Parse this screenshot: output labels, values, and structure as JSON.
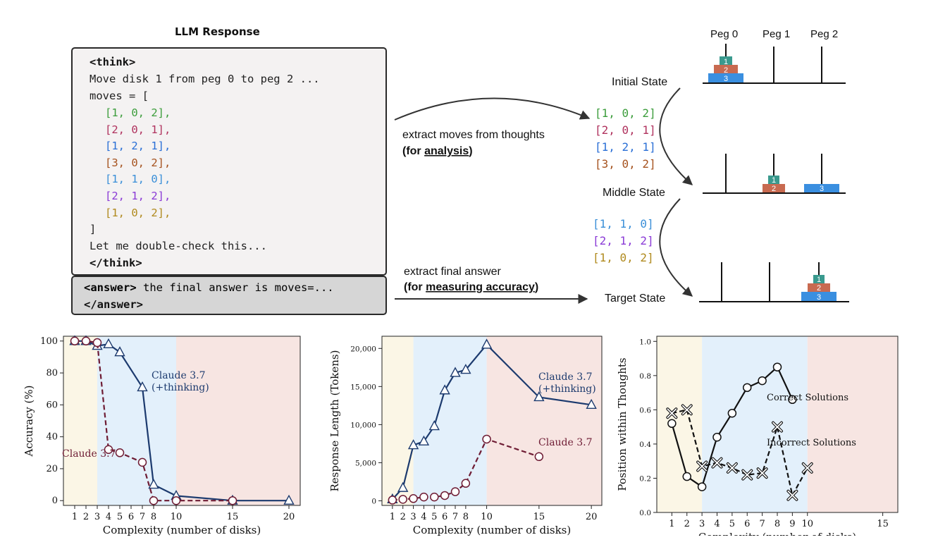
{
  "llm": {
    "title": "LLM Response",
    "think_open": "<think>",
    "line_move": "Move disk 1 from peg 0 to peg 2 ...",
    "moves_open": "moves = [",
    "moves": [
      {
        "text": "[1, 0, 2],",
        "color": "#3c9d3c"
      },
      {
        "text": "[2, 0, 1],",
        "color": "#b0325e"
      },
      {
        "text": "[1, 2, 1],",
        "color": "#2a6fd6"
      },
      {
        "text": "[3, 0, 2],",
        "color": "#a5521e"
      },
      {
        "text": "[1, 1, 0],",
        "color": "#3a8fd8"
      },
      {
        "text": "[2, 1, 2],",
        "color": "#8a3ad6"
      },
      {
        "text": "[1, 0, 2],",
        "color": "#b08a1e"
      }
    ],
    "moves_close": "]",
    "double_check": "Let me double-check this...",
    "think_close": "</think>",
    "answer_open": "<answer>",
    "answer_text": " the final answer is moves=...",
    "answer_close": "</answer>"
  },
  "arrows": {
    "extract_moves": "extract moves  from thoughts",
    "for_analysis_pre": "(for ",
    "for_analysis_u": "analysis",
    "for_analysis_post": ")",
    "extract_final": "extract final answer",
    "for_acc_pre": "(for ",
    "for_acc_u": "measuring accuracy",
    "for_acc_post": ")"
  },
  "hanoi": {
    "pegs": [
      "Peg 0",
      "Peg 1",
      "Peg 2"
    ],
    "states": [
      "Initial State",
      "Middle State",
      "Target State"
    ],
    "disk_labels": [
      "1",
      "2",
      "3"
    ],
    "disk_colors": [
      "#3a9a8e",
      "#c86a50",
      "#3a8fe0"
    ],
    "moves_a": [
      {
        "text": "[1, 0, 2]",
        "color": "#3c9d3c"
      },
      {
        "text": "[2, 0, 1]",
        "color": "#b0325e"
      },
      {
        "text": "[1, 2, 1]",
        "color": "#2a6fd6"
      },
      {
        "text": "[3, 0, 2]",
        "color": "#a5521e"
      }
    ],
    "moves_b": [
      {
        "text": "[1, 1, 0]",
        "color": "#3a8fd8"
      },
      {
        "text": "[2, 1, 2]",
        "color": "#8a3ad6"
      },
      {
        "text": "[1, 0, 2]",
        "color": "#b08a1e"
      }
    ]
  },
  "colors": {
    "claude_thinking": "#1c3a6e",
    "claude": "#6e1c34",
    "band_low": "#fbf6e6",
    "band_mid": "#e3f0fb",
    "band_high": "#f7e5e2"
  },
  "chart_data": [
    {
      "type": "line",
      "xlabel": "Complexity (number of disks)",
      "ylabel": "Accuracy (%)",
      "xlim": [
        0,
        21
      ],
      "ylim": [
        -3,
        103
      ],
      "xticks": [
        1,
        2,
        3,
        4,
        5,
        6,
        7,
        8,
        10,
        15,
        20
      ],
      "yticks": [
        0,
        20,
        40,
        60,
        80,
        100
      ],
      "bands": [
        [
          0,
          3,
          "low"
        ],
        [
          3,
          10,
          "mid"
        ],
        [
          10,
          21,
          "high"
        ]
      ],
      "series": [
        {
          "name": "Claude 3.7 (+thinking)",
          "marker": "triangle",
          "style": "solid",
          "x": [
            1,
            2,
            3,
            4,
            5,
            7,
            8,
            10,
            15,
            20
          ],
          "y": [
            100,
            100,
            97,
            98,
            93,
            71,
            10,
            3,
            0,
            0
          ]
        },
        {
          "name": "Claude 3.7",
          "marker": "circle",
          "style": "dashed",
          "x": [
            1,
            2,
            3,
            4,
            5,
            7,
            8,
            10,
            15
          ],
          "y": [
            100,
            100,
            99,
            32,
            30,
            24,
            0,
            0,
            0
          ]
        }
      ],
      "labels": [
        {
          "lines": [
            "Claude 3.7",
            "(+thinking)"
          ],
          "series": 0
        },
        {
          "lines": [
            "Claude 3.7"
          ],
          "series": 1
        }
      ]
    },
    {
      "type": "line",
      "xlabel": "Complexity (number of disks)",
      "ylabel": "Response Length (Tokens)",
      "xlim": [
        0,
        21
      ],
      "ylim": [
        -600,
        21600
      ],
      "xticks": [
        1,
        2,
        3,
        4,
        5,
        6,
        7,
        8,
        10,
        15,
        20
      ],
      "yticks": [
        0,
        5000,
        10000,
        15000,
        20000
      ],
      "ytick_labels": [
        "0",
        "5,000",
        "10,000",
        "15,000",
        "20,000"
      ],
      "bands": [
        [
          0,
          3,
          "low"
        ],
        [
          3,
          10,
          "mid"
        ],
        [
          10,
          21,
          "high"
        ]
      ],
      "series": [
        {
          "name": "Claude 3.7 (+thinking)",
          "marker": "triangle",
          "style": "solid",
          "x": [
            1,
            2,
            3,
            4,
            5,
            6,
            7,
            8,
            10,
            15,
            20
          ],
          "y": [
            200,
            1700,
            7300,
            7800,
            9800,
            14500,
            16800,
            17200,
            20500,
            13600,
            12600
          ]
        },
        {
          "name": "Claude 3.7",
          "marker": "circle",
          "style": "dashed",
          "x": [
            1,
            2,
            3,
            4,
            5,
            6,
            7,
            8,
            10,
            15
          ],
          "y": [
            100,
            200,
            300,
            500,
            500,
            700,
            1200,
            2300,
            8100,
            5800
          ]
        }
      ],
      "labels": [
        {
          "lines": [
            "Claude 3.7",
            "(+thinking)"
          ],
          "series": 0
        },
        {
          "lines": [
            "Claude 3.7"
          ],
          "series": 1
        }
      ]
    },
    {
      "type": "line",
      "xlabel": "Complexity (number of disks)",
      "ylabel": "Position within Thoughts",
      "xlim": [
        0,
        16
      ],
      "ylim": [
        0,
        1.03
      ],
      "xticks": [
        1,
        2,
        3,
        4,
        5,
        6,
        7,
        8,
        9,
        10,
        15
      ],
      "yticks": [
        0.0,
        0.2,
        0.4,
        0.6,
        0.8,
        1.0
      ],
      "ytick_labels": [
        "0.0",
        "0.2",
        "0.4",
        "0.6",
        "0.8",
        "1.0"
      ],
      "bands": [
        [
          0,
          3,
          "low"
        ],
        [
          3,
          10,
          "mid"
        ],
        [
          10,
          16,
          "high"
        ]
      ],
      "series": [
        {
          "name": "Correct Solutions",
          "marker": "circle-black",
          "style": "solid",
          "x": [
            1,
            2,
            3,
            4,
            5,
            6,
            7,
            8,
            9
          ],
          "y": [
            0.52,
            0.21,
            0.15,
            0.44,
            0.58,
            0.73,
            0.77,
            0.85,
            0.66
          ]
        },
        {
          "name": "Incorrect Solutions",
          "marker": "cross",
          "style": "dashed",
          "x": [
            1,
            2,
            3,
            4,
            5,
            6,
            7,
            8,
            9,
            10
          ],
          "y": [
            0.58,
            0.6,
            0.27,
            0.29,
            0.26,
            0.22,
            0.23,
            0.5,
            0.1,
            0.26
          ]
        }
      ],
      "labels": [
        {
          "lines": [
            "Correct Solutions"
          ],
          "series": 0
        },
        {
          "lines": [
            "Incorrect Solutions"
          ],
          "series": 1
        }
      ]
    }
  ]
}
